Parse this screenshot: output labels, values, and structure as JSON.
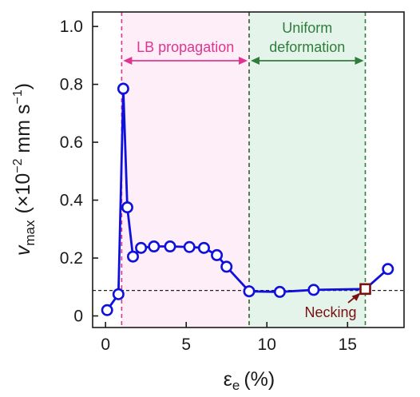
{
  "chart_data": {
    "type": "line",
    "xlabel_symbol": "ε",
    "xlabel_sub": "e",
    "xlabel_unit": "(%)",
    "ylabel_symbol": "v",
    "ylabel_sub": "max",
    "ylabel_unit_pre": "(×10",
    "ylabel_exp1": "−2",
    "ylabel_unit_mid": " mm s",
    "ylabel_exp2": "−1",
    "ylabel_unit_post": ")",
    "xlim": [
      -0.8,
      18.5
    ],
    "ylim": [
      -0.04,
      1.05
    ],
    "xticks": [
      0,
      5,
      10,
      15
    ],
    "xtick_labels": [
      "0",
      "5",
      "10",
      "15"
    ],
    "yticks": [
      0,
      0.2,
      0.4,
      0.6,
      0.8,
      1.0
    ],
    "ytick_labels": [
      "0",
      "0.2",
      "0.4",
      "0.6",
      "0.8",
      "1.0"
    ],
    "series": [
      {
        "color": "#1010dd",
        "marker": "open-circle",
        "x": [
          0.1,
          0.8,
          1.1,
          1.35,
          1.7,
          2.2,
          3.0,
          4.0,
          5.2,
          6.1,
          6.9,
          7.5,
          8.9,
          10.8,
          12.9,
          16.1,
          17.5
        ],
        "y": [
          0.02,
          0.075,
          0.785,
          0.375,
          0.205,
          0.235,
          0.24,
          0.24,
          0.238,
          0.235,
          0.21,
          0.17,
          0.085,
          0.083,
          0.09,
          0.093,
          0.162
        ]
      }
    ],
    "special_point": {
      "x": 16.1,
      "y": 0.093,
      "color": "#7a1010",
      "marker": "open-square"
    },
    "reference_line": {
      "y": 0.088,
      "style": "dashed",
      "color": "#222222"
    },
    "regions": [
      {
        "label": "LB propagation",
        "x_start": 1.0,
        "x_end": 8.9,
        "fill": "#fdeef8",
        "line_color": "#e0348f",
        "text_color": "#e0348f"
      },
      {
        "label_line1": "Uniform",
        "label_line2": "deformation",
        "x_start": 8.9,
        "x_end": 16.1,
        "fill": "#e4f4ea",
        "line_color": "#2f7d3a",
        "text_color": "#2f7d3a"
      }
    ],
    "annotation": {
      "text": "Necking",
      "color": "#7a1010"
    },
    "grid": false
  }
}
